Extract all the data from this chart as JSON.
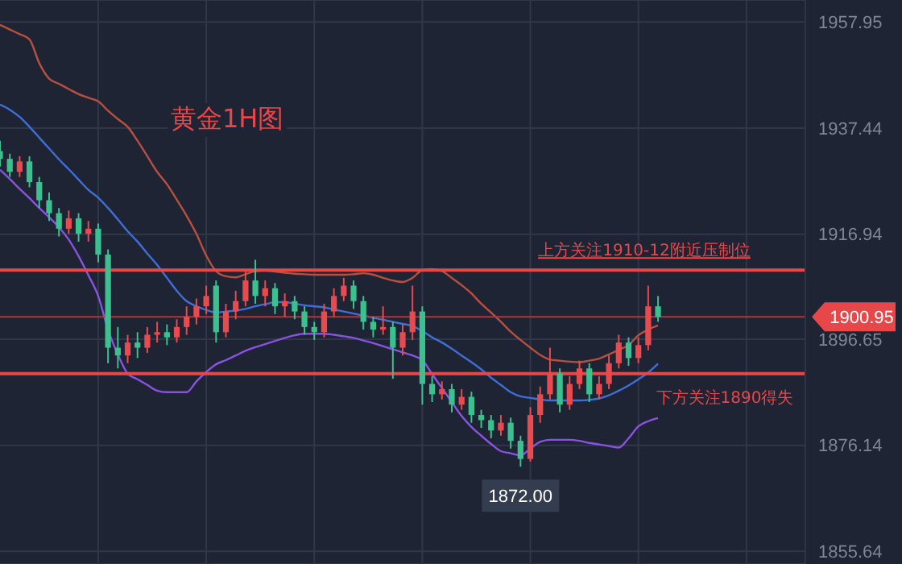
{
  "chart_data": {
    "type": "candlestick",
    "title": "黄金1H图",
    "categories": [
      null,
      null,
      null,
      null,
      null,
      null,
      null,
      null,
      null,
      null,
      null,
      null,
      null,
      null,
      null,
      null,
      null,
      null,
      null,
      null,
      null,
      null,
      null,
      null,
      null,
      null,
      null,
      null,
      null,
      null,
      null,
      null,
      null,
      null,
      null,
      null,
      null,
      null,
      null,
      null,
      null,
      null,
      null,
      null,
      null,
      null,
      null,
      null,
      null,
      null,
      null,
      null,
      null,
      null,
      null,
      null,
      null,
      null,
      null,
      null,
      null,
      null,
      null,
      null,
      null,
      null,
      null,
      null,
      null,
      null,
      null,
      null,
      null,
      null,
      null,
      null,
      null,
      null,
      null,
      null,
      null,
      null,
      null
    ],
    "ohlc": [
      [
        1933,
        1935,
        1930,
        1931.5
      ],
      [
        1931.5,
        1932.5,
        1928,
        1929
      ],
      [
        1929,
        1932,
        1928,
        1931
      ],
      [
        1931,
        1932,
        1926,
        1927
      ],
      [
        1927,
        1928,
        1922,
        1923.5
      ],
      [
        1923.5,
        1925,
        1919.5,
        1921
      ],
      [
        1921,
        1922,
        1916.5,
        1918
      ],
      [
        1918,
        1921.5,
        1917,
        1920
      ],
      [
        1920,
        1921,
        1915.5,
        1917
      ],
      [
        1917,
        1919.5,
        1915.5,
        1918
      ],
      [
        1918,
        1919,
        1911.5,
        1913
      ],
      [
        1913,
        1914,
        1892,
        1895
      ],
      [
        1895,
        1899,
        1891,
        1893.5
      ],
      [
        1893.5,
        1897.5,
        1892,
        1896
      ],
      [
        1896,
        1898,
        1893,
        1895
      ],
      [
        1895,
        1899,
        1894,
        1897.5
      ],
      [
        1897.5,
        1900,
        1896,
        1898
      ],
      [
        1898,
        1899.5,
        1895.5,
        1897
      ],
      [
        1897,
        1900.5,
        1896,
        1899
      ],
      [
        1899,
        1903,
        1897.5,
        1901
      ],
      [
        1901,
        1904.5,
        1899.5,
        1903
      ],
      [
        1903,
        1907,
        1901.5,
        1905
      ],
      [
        1907,
        1908,
        1896,
        1898
      ],
      [
        1898,
        1903.5,
        1897,
        1902
      ],
      [
        1902,
        1906,
        1900.5,
        1904
      ],
      [
        1904,
        1910,
        1903,
        1908
      ],
      [
        1908,
        1912,
        1903.5,
        1905
      ],
      [
        1905,
        1908,
        1903,
        1906.5
      ],
      [
        1906.5,
        1907.5,
        1901.5,
        1903
      ],
      [
        1903,
        1905.5,
        1901,
        1904
      ],
      [
        1904,
        1905,
        1900.5,
        1902
      ],
      [
        1902,
        1903,
        1897.5,
        1899
      ],
      [
        1899,
        1900,
        1896.5,
        1898
      ],
      [
        1898,
        1903.5,
        1897,
        1902
      ],
      [
        1902,
        1906.5,
        1901,
        1905
      ],
      [
        1905,
        1908.5,
        1904,
        1907
      ],
      [
        1907,
        1908,
        1902.5,
        1904
      ],
      [
        1904,
        1905,
        1898.5,
        1900
      ],
      [
        1900,
        1901,
        1897,
        1898.5
      ],
      [
        1898.5,
        1903,
        1897.5,
        1899
      ],
      [
        1899,
        1900,
        1889,
        1895
      ],
      [
        1895,
        1899.5,
        1893.5,
        1898
      ],
      [
        1898,
        1907,
        1896.5,
        1902
      ],
      [
        1902,
        1903,
        1884,
        1888
      ],
      [
        1888,
        1889.5,
        1884.5,
        1886
      ],
      [
        1886,
        1888.5,
        1885,
        1887
      ],
      [
        1887,
        1888,
        1882.5,
        1884
      ],
      [
        1884,
        1887,
        1883,
        1885.5
      ],
      [
        1885.5,
        1886.5,
        1880.5,
        1882
      ],
      [
        1882,
        1883,
        1879.5,
        1881
      ],
      [
        1881,
        1882,
        1877.5,
        1879
      ],
      [
        1879,
        1882,
        1878,
        1880.5
      ],
      [
        1880.5,
        1881.5,
        1875.5,
        1877
      ],
      [
        1877,
        1878,
        1872,
        1873.5
      ],
      [
        1873.5,
        1883.5,
        1873,
        1882
      ],
      [
        1882,
        1887.5,
        1880.5,
        1886
      ],
      [
        1886,
        1895,
        1885,
        1890
      ],
      [
        1890,
        1891,
        1882.5,
        1884
      ],
      [
        1884,
        1889.5,
        1883,
        1888
      ],
      [
        1888,
        1892.5,
        1887,
        1891
      ],
      [
        1891,
        1892,
        1884.5,
        1886
      ],
      [
        1886,
        1889.5,
        1885,
        1888
      ],
      [
        1888,
        1893.5,
        1887,
        1892
      ],
      [
        1892,
        1897.5,
        1891,
        1896
      ],
      [
        1896,
        1897,
        1891.5,
        1893
      ],
      [
        1893,
        1897,
        1892,
        1895.5
      ],
      [
        1895.5,
        1907,
        1894.5,
        1903
      ],
      [
        1903,
        1905,
        1900,
        1900.95
      ],
      null,
      null,
      null,
      null,
      null,
      null,
      null,
      null,
      null,
      null,
      null,
      null,
      null,
      null,
      null
    ],
    "colors": [
      "#3cc08f",
      "#3cc08f",
      "#e84a4d",
      "#3cc08f",
      "#3cc08f",
      "#3cc08f",
      "#3cc08f",
      "#e84a4d",
      "#3cc08f",
      "#e84a4d",
      "#3cc08f",
      "#3cc08f",
      "#3cc08f",
      "#e84a4d",
      "#3cc08f",
      "#e84a4d",
      "#e84a4d",
      "#3cc08f",
      "#e84a4d",
      "#e84a4d",
      "#e84a4d",
      "#e84a4d",
      "#3cc08f",
      "#e84a4d",
      "#e84a4d",
      "#e84a4d",
      "#3cc08f",
      "#e84a4d",
      "#3cc08f",
      "#e84a4d",
      "#3cc08f",
      "#3cc08f",
      "#3cc08f",
      "#e84a4d",
      "#e84a4d",
      "#e84a4d",
      "#3cc08f",
      "#3cc08f",
      "#3cc08f",
      "#e84a4d",
      "#3cc08f",
      "#e84a4d",
      "#e84a4d",
      "#3cc08f",
      "#3cc08f",
      "#e84a4d",
      "#3cc08f",
      "#e84a4d",
      "#3cc08f",
      "#3cc08f",
      "#3cc08f",
      "#e84a4d",
      "#3cc08f",
      "#3cc08f",
      "#e84a4d",
      "#e84a4d",
      "#e84a4d",
      "#3cc08f",
      "#e84a4d",
      "#e84a4d",
      "#3cc08f",
      "#e84a4d",
      "#e84a4d",
      "#e84a4d",
      "#3cc08f",
      "#e84a4d",
      "#e84a4d",
      "#3cc08f",
      null,
      null,
      null,
      null,
      null,
      null,
      null,
      null,
      null,
      null,
      null,
      null,
      null,
      null,
      null
    ],
    "series": [
      {
        "type": "line",
        "color": "#b8503f",
        "values": [
          1957.4,
          1956.5,
          1955.6,
          1954.6,
          1950,
          1947,
          1946,
          1945,
          1944,
          1943.3,
          1942.6,
          1940.8,
          1939.2,
          1937.7,
          1935,
          1932,
          1929,
          1926.6,
          1923.6,
          1920.5,
          1917,
          1912.8,
          1909.8,
          1908.8,
          1908.6,
          1909.2,
          1909.8,
          1909.9,
          1909.7,
          1909.5,
          1909.3,
          1909.2,
          1909.1,
          1909.1,
          1909.1,
          1909.1,
          1909.2,
          1909.4,
          1909.1,
          1908.5,
          1908,
          1907.7,
          1908.5,
          1910,
          1910.2,
          1909.8,
          1908.5,
          1907.1,
          1905.5,
          1903.5,
          1901.8,
          1900,
          1898.1,
          1896.5,
          1895,
          1893.6,
          1892.7,
          1892.5,
          1892.3,
          1892.2,
          1892.5,
          1892.9,
          1893.7,
          1894.6,
          1895.5,
          1897.4,
          1898.5,
          1899.3,
          null,
          null,
          null,
          null,
          null,
          null,
          null,
          null,
          null,
          null,
          null,
          null,
          null,
          null,
          null
        ]
      },
      {
        "type": "line",
        "color": "#3f6fd6",
        "values": [
          1942,
          1941,
          1939.6,
          1937.7,
          1935.6,
          1933.5,
          1931.4,
          1929.5,
          1927.5,
          1925.5,
          1924,
          1922,
          1919.8,
          1917.5,
          1915.5,
          1913.2,
          1911,
          1908.5,
          1906,
          1904,
          1903,
          1902.3,
          1901.8,
          1902,
          1902.2,
          1902.5,
          1903,
          1903.4,
          1903.8,
          1903.8,
          1903.5,
          1903.2,
          1903,
          1902.8,
          1902.4,
          1902,
          1901.6,
          1901.2,
          1900.8,
          1900.4,
          1900,
          1899.6,
          1899.2,
          1898.2,
          1897,
          1896,
          1894.8,
          1893.5,
          1892.2,
          1890.8,
          1889.2,
          1887.8,
          1886.4,
          1885.6,
          1885.3,
          1885,
          1884.8,
          1884.8,
          1884.8,
          1884.8,
          1884.9,
          1885.2,
          1885.8,
          1886.7,
          1887.7,
          1888.9,
          1890.2,
          1891.9,
          null,
          null,
          null,
          null,
          null,
          null,
          null,
          null,
          null,
          null,
          null,
          null,
          null,
          null,
          null
        ]
      },
      {
        "type": "line",
        "color": "#8a52e0",
        "values": [
          1929.4,
          1927.6,
          1925.7,
          1923.9,
          1922,
          1920.2,
          1918.3,
          1915.9,
          1912.7,
          1909,
          1905,
          1898.5,
          1893.7,
          1890,
          1888.9,
          1887.8,
          1886.7,
          1886.4,
          1886.4,
          1886.4,
          1888.5,
          1890.3,
          1891.8,
          1892.6,
          1893.5,
          1894.4,
          1895.1,
          1895.7,
          1896.3,
          1896.9,
          1897.4,
          1897.7,
          1897.7,
          1897.7,
          1897.5,
          1897.2,
          1896.9,
          1896.4,
          1895.9,
          1895.3,
          1894.7,
          1894.1,
          1893.5,
          1892.6,
          1889.9,
          1887.2,
          1884.5,
          1881.8,
          1879.7,
          1878,
          1876.4,
          1875,
          1874.6,
          1874.2,
          1875.5,
          1876.8,
          1877.2,
          1877.2,
          1877.2,
          1877,
          1876.6,
          1876.3,
          1876,
          1875.7,
          1877.5,
          1879.8,
          1880.8,
          1881.4,
          null,
          null,
          null,
          null,
          null,
          null,
          null,
          null,
          null,
          null,
          null,
          null,
          null,
          null,
          null
        ]
      }
    ],
    "ylim": [
      1853.2,
      1962.2
    ],
    "yticks": [
      1855.64,
      1876.14,
      1896.65,
      1916.94,
      1937.44,
      1957.95
    ],
    "tick_labels": "y",
    "grid": true,
    "ref_lines": [
      {
        "axis": "y",
        "value": 1910,
        "label": "上方关注1910-12附近压制位",
        "color": "#e8474a"
      },
      {
        "axis": "y",
        "value": 1900.95,
        "label": "1900.95",
        "color": "#a8383e"
      },
      {
        "axis": "y",
        "value": 1890,
        "label": "下方关注1890得失",
        "color": "#e8474a"
      }
    ],
    "annotations": [
      {
        "text": "1872.00",
        "y": 1872
      }
    ]
  }
}
